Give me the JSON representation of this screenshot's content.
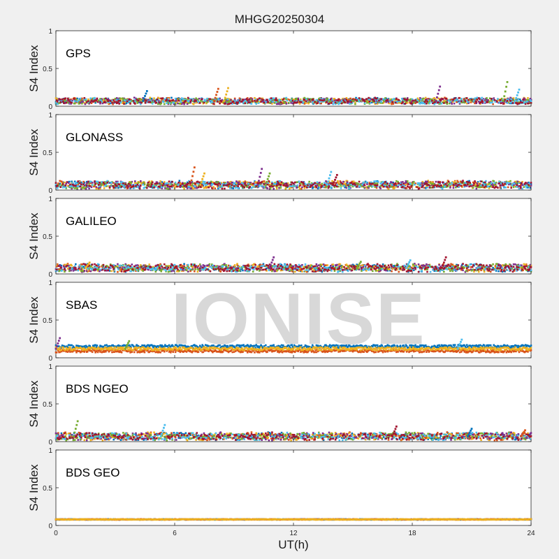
{
  "figure": {
    "title": "MHGG20250304",
    "xlabel": "UT(h)",
    "watermark": "IONISE"
  },
  "colors": {
    "series": [
      "#0072bd",
      "#d95319",
      "#edb120",
      "#7e2f8e",
      "#77ac30",
      "#4dbeee",
      "#a2142f"
    ],
    "background": "#f0f0f0",
    "axes_background": "#ffffff"
  },
  "chart_data": [
    {
      "type": "scatter",
      "panel": "GPS",
      "ylabel": "S4 Index",
      "xlim": [
        0,
        24
      ],
      "ylim": [
        0,
        1
      ],
      "xticks": [
        "0",
        "6",
        "12",
        "18",
        "24"
      ],
      "yticks": [
        "0",
        "0.5",
        "1"
      ],
      "baseline": 0.07,
      "spread": 0.04,
      "series_count": 7,
      "peaks": [
        [
          4.5,
          0.2
        ],
        [
          8.1,
          0.23
        ],
        [
          8.6,
          0.24
        ],
        [
          19.3,
          0.26
        ],
        [
          22.7,
          0.32
        ],
        [
          23.3,
          0.22
        ]
      ]
    },
    {
      "type": "scatter",
      "panel": "GLONASS",
      "ylabel": "S4 Index",
      "xlim": [
        0,
        24
      ],
      "ylim": [
        0,
        1
      ],
      "xticks": [
        "0",
        "6",
        "12",
        "18",
        "24"
      ],
      "yticks": [
        "0",
        "0.5",
        "1"
      ],
      "baseline": 0.07,
      "spread": 0.05,
      "series_count": 7,
      "peaks": [
        [
          6.9,
          0.3
        ],
        [
          7.4,
          0.22
        ],
        [
          10.3,
          0.28
        ],
        [
          10.7,
          0.22
        ],
        [
          13.8,
          0.24
        ],
        [
          14.1,
          0.2
        ]
      ]
    },
    {
      "type": "scatter",
      "panel": "GALILEO",
      "ylabel": "S4 Index",
      "xlim": [
        0,
        24
      ],
      "ylim": [
        0,
        1
      ],
      "xticks": [
        "0",
        "6",
        "12",
        "18",
        "24"
      ],
      "yticks": [
        "0",
        "0.5",
        "1"
      ],
      "baseline": 0.08,
      "spread": 0.05,
      "series_count": 7,
      "peaks": [
        [
          1.6,
          0.15
        ],
        [
          10.9,
          0.22
        ],
        [
          15.3,
          0.16
        ],
        [
          17.8,
          0.18
        ],
        [
          19.6,
          0.22
        ]
      ]
    },
    {
      "type": "scatter",
      "panel": "SBAS",
      "ylabel": "S4 Index",
      "xlim": [
        0,
        24
      ],
      "ylim": [
        0,
        1
      ],
      "xticks": [
        "0",
        "6",
        "12",
        "18",
        "24"
      ],
      "yticks": [
        "0",
        "0.5",
        "1"
      ],
      "baseline": 0.12,
      "spread": 0.04,
      "series_count": 3,
      "peaks": [
        [
          0.1,
          0.26
        ],
        [
          3.6,
          0.22
        ],
        [
          20.4,
          0.24
        ]
      ]
    },
    {
      "type": "scatter",
      "panel": "BDS NGEO",
      "ylabel": "S4 Index",
      "xlim": [
        0,
        24
      ],
      "ylim": [
        0,
        1
      ],
      "xticks": [
        "0",
        "6",
        "12",
        "18",
        "24"
      ],
      "yticks": [
        "0",
        "0.5",
        "1"
      ],
      "baseline": 0.07,
      "spread": 0.05,
      "series_count": 7,
      "peaks": [
        [
          1.0,
          0.27
        ],
        [
          5.4,
          0.22
        ],
        [
          17.1,
          0.2
        ],
        [
          20.9,
          0.17
        ],
        [
          23.6,
          0.15
        ]
      ]
    },
    {
      "type": "scatter",
      "panel": "BDS GEO",
      "ylabel": "S4 Index",
      "xlim": [
        0,
        24
      ],
      "ylim": [
        0,
        1
      ],
      "xticks": [
        "0",
        "6",
        "12",
        "18",
        "24"
      ],
      "yticks": [
        "0",
        "0.5",
        "1"
      ],
      "baseline": 0.08,
      "spread": 0.01,
      "series_count": 3,
      "peaks": []
    }
  ]
}
